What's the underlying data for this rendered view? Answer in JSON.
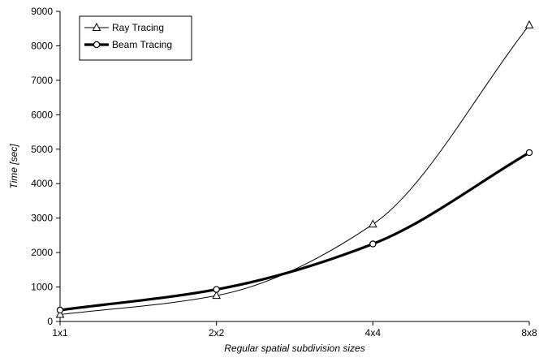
{
  "chart_data": {
    "type": "line",
    "title": "",
    "xlabel": "Regular spatial subdivision sizes",
    "ylabel": "Time [sec]",
    "categories": [
      "1x1",
      "2x2",
      "4x4",
      "8x8"
    ],
    "ylim": [
      0,
      9000
    ],
    "yticks": [
      0,
      1000,
      2000,
      3000,
      4000,
      5000,
      6000,
      7000,
      8000,
      9000
    ],
    "grid": false,
    "legend_position": "top-left",
    "series": [
      {
        "name": "Ray Tracing",
        "marker": "triangle",
        "line_style": "thin",
        "values": [
          200,
          750,
          2820,
          8600
        ]
      },
      {
        "name": "Beam Tracing",
        "marker": "circle",
        "line_style": "thick",
        "values": [
          330,
          930,
          2250,
          4900
        ]
      }
    ],
    "colors": {
      "line": "#000000",
      "marker_fill": "#ffffff"
    }
  }
}
